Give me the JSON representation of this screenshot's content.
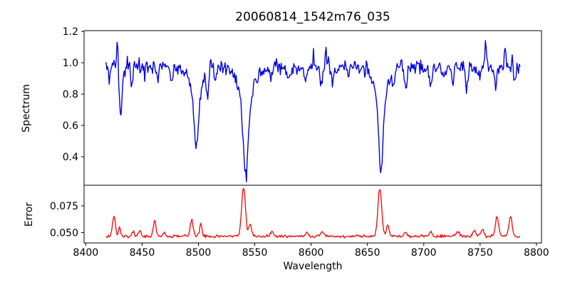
{
  "figure": {
    "background": "#ffffff",
    "spine_color": "#000000",
    "text_color": "#000000"
  },
  "chart_data": {
    "type": "line",
    "title": "20060814_1542m76_035",
    "xlabel": "Wavelength",
    "xlim": [
      8398.5,
      8804.5
    ],
    "xticks": [
      8400,
      8450,
      8500,
      8550,
      8600,
      8650,
      8700,
      8750,
      8800
    ],
    "xtick_labels": [
      "8400",
      "8450",
      "8500",
      "8550",
      "8600",
      "8650",
      "8700",
      "8750",
      "8800"
    ],
    "x_start": 8418,
    "x_end": 8786,
    "x_step": 0.7,
    "grid": false,
    "legend": "none",
    "panels": [
      {
        "name": "spectrum",
        "ylabel": "Spectrum",
        "line_color": "#0000e6",
        "ylim": [
          0.218,
          1.205
        ],
        "yticks": [
          0.4,
          0.6,
          0.8,
          1.0,
          1.2
        ],
        "ytick_labels": [
          "0.4",
          "0.6",
          "0.8",
          "1.0",
          "1.2"
        ],
        "continuum": 0.97,
        "noise_sigma": 0.024,
        "absorption_lines": [
          {
            "center": 8421,
            "depth": 0.06,
            "sigma": 1.0
          },
          {
            "center": 8431,
            "depth": 0.3,
            "sigma": 1.2
          },
          {
            "center": 8441,
            "depth": 0.12,
            "sigma": 1.0
          },
          {
            "center": 8464,
            "depth": 0.09,
            "sigma": 1.0
          },
          {
            "center": 8476,
            "depth": 0.1,
            "sigma": 1.0
          },
          {
            "center": 8498,
            "depth": 0.38,
            "sigma": 2.0
          },
          {
            "center": 8498,
            "depth": 0.13,
            "sigma": 6.0
          },
          {
            "center": 8508,
            "depth": 0.15,
            "sigma": 1.1
          },
          {
            "center": 8515,
            "depth": 0.08,
            "sigma": 1.0
          },
          {
            "center": 8542,
            "depth": 0.5,
            "sigma": 2.2
          },
          {
            "center": 8542,
            "depth": 0.19,
            "sigma": 7.0
          },
          {
            "center": 8565,
            "depth": 0.09,
            "sigma": 1.0
          },
          {
            "center": 8580,
            "depth": 0.06,
            "sigma": 1.0
          },
          {
            "center": 8595,
            "depth": 0.09,
            "sigma": 1.0
          },
          {
            "center": 8609,
            "depth": 0.13,
            "sigma": 1.0
          },
          {
            "center": 8619,
            "depth": 0.09,
            "sigma": 1.0
          },
          {
            "center": 8633,
            "depth": 0.07,
            "sigma": 1.0
          },
          {
            "center": 8648,
            "depth": 0.06,
            "sigma": 1.0
          },
          {
            "center": 8662,
            "depth": 0.5,
            "sigma": 2.0
          },
          {
            "center": 8662,
            "depth": 0.17,
            "sigma": 6.0
          },
          {
            "center": 8673,
            "depth": 0.08,
            "sigma": 1.0
          },
          {
            "center": 8684,
            "depth": 0.14,
            "sigma": 1.1
          },
          {
            "center": 8706,
            "depth": 0.13,
            "sigma": 1.0
          },
          {
            "center": 8717,
            "depth": 0.07,
            "sigma": 1.0
          },
          {
            "center": 8726,
            "depth": 0.1,
            "sigma": 1.0
          },
          {
            "center": 8738,
            "depth": 0.14,
            "sigma": 1.0
          },
          {
            "center": 8750,
            "depth": 0.07,
            "sigma": 1.0
          },
          {
            "center": 8764,
            "depth": 0.12,
            "sigma": 1.0
          },
          {
            "center": 8781,
            "depth": 0.09,
            "sigma": 1.0
          }
        ],
        "emission_spikes": [
          {
            "center": 8428,
            "amp": 0.18,
            "sigma": 0.7
          },
          {
            "center": 8602,
            "amp": 0.1,
            "sigma": 0.7
          },
          {
            "center": 8613,
            "amp": 0.1,
            "sigma": 0.7
          },
          {
            "center": 8649,
            "amp": 0.08,
            "sigma": 0.7
          },
          {
            "center": 8755,
            "amp": 0.17,
            "sigma": 0.7
          },
          {
            "center": 8772,
            "amp": 0.13,
            "sigma": 0.7
          }
        ]
      },
      {
        "name": "error",
        "ylabel": "Error",
        "line_color": "#ff0000",
        "ylim": [
          0.0403,
          0.0943
        ],
        "yticks": [
          0.05,
          0.075
        ],
        "ytick_labels": [
          "0.050",
          "0.075"
        ],
        "baseline": 0.0465,
        "noise_sigma": 0.0007,
        "peaks": [
          {
            "center": 8425,
            "amp": 0.019,
            "sigma": 1.3
          },
          {
            "center": 8430,
            "amp": 0.008,
            "sigma": 1.0
          },
          {
            "center": 8442,
            "amp": 0.005,
            "sigma": 1.0
          },
          {
            "center": 8448,
            "amp": 0.006,
            "sigma": 1.0
          },
          {
            "center": 8461,
            "amp": 0.015,
            "sigma": 1.2
          },
          {
            "center": 8470,
            "amp": 0.004,
            "sigma": 1.2
          },
          {
            "center": 8494,
            "amp": 0.016,
            "sigma": 1.3
          },
          {
            "center": 8502,
            "amp": 0.012,
            "sigma": 1.1
          },
          {
            "center": 8540,
            "amp": 0.046,
            "sigma": 1.7
          },
          {
            "center": 8546,
            "amp": 0.012,
            "sigma": 1.2
          },
          {
            "center": 8565,
            "amp": 0.004,
            "sigma": 1.4
          },
          {
            "center": 8596,
            "amp": 0.004,
            "sigma": 1.2
          },
          {
            "center": 8610,
            "amp": 0.005,
            "sigma": 1.2
          },
          {
            "center": 8661,
            "amp": 0.045,
            "sigma": 1.7
          },
          {
            "center": 8668,
            "amp": 0.011,
            "sigma": 1.2
          },
          {
            "center": 8684,
            "amp": 0.004,
            "sigma": 1.4
          },
          {
            "center": 8706,
            "amp": 0.004,
            "sigma": 1.2
          },
          {
            "center": 8730,
            "amp": 0.004,
            "sigma": 1.6
          },
          {
            "center": 8745,
            "amp": 0.005,
            "sigma": 1.6
          },
          {
            "center": 8752,
            "amp": 0.006,
            "sigma": 1.4
          },
          {
            "center": 8765,
            "amp": 0.018,
            "sigma": 1.4
          },
          {
            "center": 8777,
            "amp": 0.019,
            "sigma": 1.4
          }
        ]
      }
    ]
  }
}
